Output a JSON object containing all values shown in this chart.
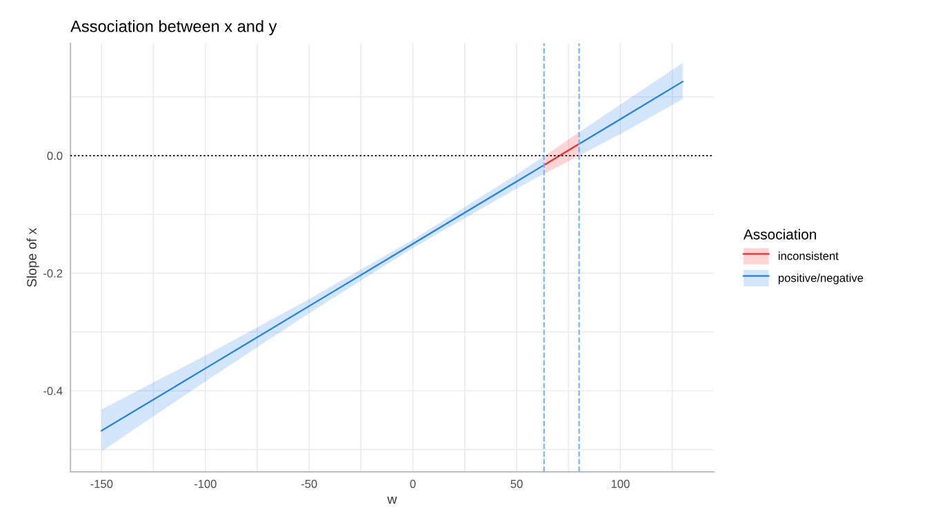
{
  "chart_data": {
    "type": "line",
    "title": "Association between x and y",
    "xlabel": "w",
    "ylabel": "Slope of x",
    "legend_title": "Association",
    "series": [
      {
        "name": "inconsistent",
        "color": "#f8292b",
        "x": [
          63.2,
          80.1
        ],
        "values": [
          -0.016,
          0.02
        ],
        "lower": [
          -0.031,
          0.0
        ],
        "upper": [
          -0.001,
          0.04
        ]
      },
      {
        "name": "positive/negative",
        "color": "#1f7fe8",
        "x": [
          -150,
          -100,
          -50,
          0,
          50,
          63.2,
          71,
          80.1,
          100,
          130
        ],
        "values": [
          -0.468,
          -0.362,
          -0.256,
          -0.15,
          -0.044,
          -0.016,
          null,
          0.02,
          0.062,
          0.126
        ],
        "lower": [
          -0.503,
          -0.384,
          -0.268,
          -0.157,
          -0.056,
          -0.031,
          null,
          0.0,
          0.037,
          0.096
        ],
        "upper": [
          -0.432,
          -0.34,
          -0.244,
          -0.143,
          -0.032,
          -0.001,
          null,
          0.04,
          0.087,
          0.158
        ]
      }
    ],
    "xlim": [
      -165,
      145
    ],
    "xticks": [
      -150,
      {
        "value": -125,
        "label": null
      },
      -100,
      {
        "value": -75,
        "label": null
      },
      -50,
      {
        "value": -25,
        "label": null
      },
      0,
      {
        "value": 25,
        "label": null
      },
      50,
      {
        "value": 75,
        "label": null
      },
      100,
      {
        "value": 125,
        "label": null
      }
    ],
    "ylim": [
      -0.538,
      0.191
    ],
    "yticks": [
      {
        "value": -0.5,
        "label": null
      },
      -0.4,
      {
        "value": -0.3,
        "label": null
      },
      -0.2,
      {
        "value": -0.1,
        "label": null
      },
      {
        "value": 0,
        "label": "0.0"
      },
      {
        "value": 0.1,
        "label": null
      }
    ],
    "ref_lines": [
      {
        "axis": "y",
        "value": 0,
        "color": "#000000",
        "line_style": "dotted"
      },
      {
        "axis": "x",
        "value": 63.2,
        "color": "#6fb1ff",
        "line_style": "dashed"
      },
      {
        "axis": "x",
        "value": 80.1,
        "color": "#6fb1ff",
        "line_style": "dashed"
      }
    ],
    "grid": true,
    "legend": "right",
    "line_style": "solid",
    "marker": "none"
  }
}
